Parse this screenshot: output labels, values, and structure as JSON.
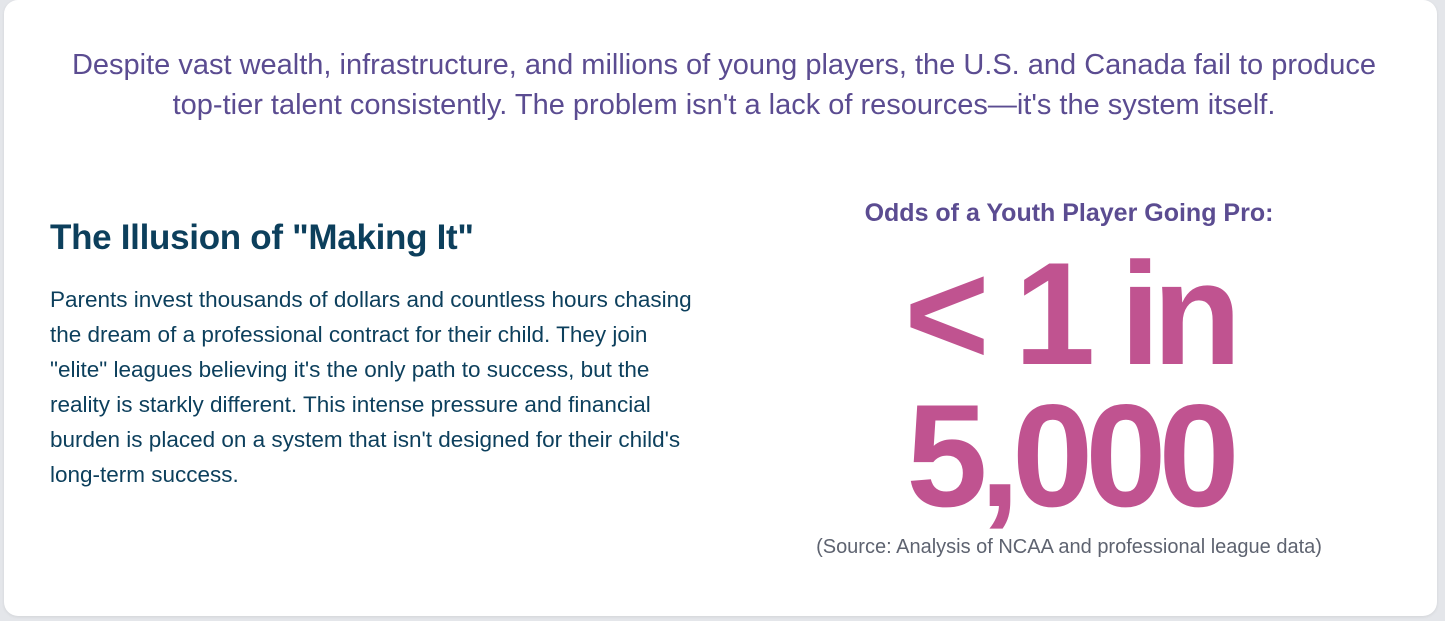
{
  "intro": {
    "text": "Despite vast wealth, infrastructure, and millions of young players, the U.S. and Canada fail to produce top-tier talent consistently. The problem isn't a lack of resources—it's the system itself."
  },
  "section": {
    "heading": "The Illusion of \"Making It\"",
    "body": "Parents invest thousands of dollars and countless hours chasing the dream of a professional contract for their child. They join \"elite\" leagues believing it's the only path to success, but the reality is starkly different. This intense pressure and financial burden is placed on a system that isn't designed for their child's long-term success."
  },
  "stat": {
    "label": "Odds of a Youth Player Going Pro:",
    "value": "< 1 in 5,000",
    "source": "(Source: Analysis of NCAA and professional league data)"
  },
  "colors": {
    "intro_text": "#5b4c91",
    "heading_text": "#0c3f5c",
    "stat_accent": "#c05390",
    "source_text": "#5e6370"
  }
}
